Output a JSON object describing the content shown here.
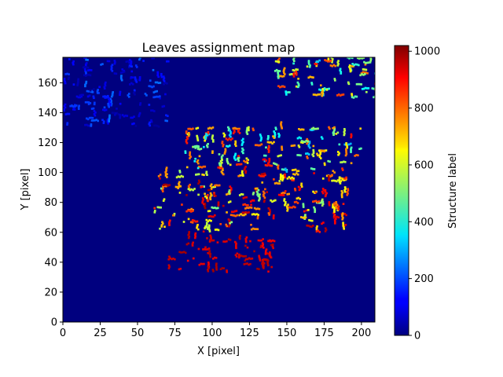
{
  "chart_data": {
    "type": "heatmap",
    "title": "Leaves assignment map",
    "xlabel": "X [pixel]",
    "ylabel": "Y [pixel]",
    "xlim": [
      0,
      209
    ],
    "ylim": [
      0,
      177
    ],
    "x_ticks": [
      0,
      25,
      50,
      75,
      100,
      125,
      150,
      175,
      200
    ],
    "y_ticks": [
      0,
      20,
      40,
      60,
      80,
      100,
      120,
      140,
      160
    ],
    "colormap": "jet",
    "colorbar": {
      "label": "Structure label",
      "range": [
        0,
        1020
      ],
      "ticks": [
        0,
        200,
        400,
        600,
        800,
        1000
      ]
    },
    "background_value": 0,
    "regions": [
      {
        "name": "lower-arc",
        "x": [
          70,
          140
        ],
        "y": [
          33,
          58
        ],
        "dominant_labels": [
          900,
          1000
        ]
      },
      {
        "name": "center-band",
        "x": [
          60,
          190
        ],
        "y": [
          60,
          100
        ],
        "dominant_labels": [
          500,
          1000
        ]
      },
      {
        "name": "upper-center",
        "x": [
          80,
          200
        ],
        "y": [
          100,
          130
        ],
        "dominant_labels": [
          300,
          900
        ]
      },
      {
        "name": "top-left",
        "x": [
          0,
          70
        ],
        "y": [
          130,
          177
        ],
        "dominant_labels": [
          20,
          250
        ]
      },
      {
        "name": "top-right",
        "x": [
          140,
          210
        ],
        "y": [
          150,
          177
        ],
        "dominant_labels": [
          300,
          900
        ]
      }
    ]
  }
}
